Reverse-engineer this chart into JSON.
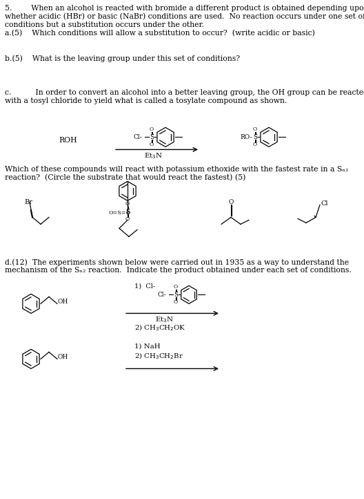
{
  "bg_color": "#ffffff",
  "text_color": "#000000",
  "fig_width": 5.28,
  "fig_height": 7.22,
  "dpi": 100,
  "lines_header": [
    "5.        When an alcohol is reacted with bromide a different product is obtained depending upon",
    "whether acidic (HBr) or basic (NaBr) conditions are used.  No reaction occurs under one set of",
    "conditions but a substitution occurs under the other.",
    "a.(5)    Which conditions will allow a substitution to occur?  (write acidic or basic)"
  ],
  "line_b": "b.(5)    What is the leaving group under this set of conditions?",
  "lines_c": [
    "c.          In order to convert an alcohol into a better leaving group, the OH group can be reacted",
    "with a tosyl chloride to yield what is called a tosylate compound as shown."
  ],
  "lines_which": [
    "Which of these compounds will react with potassium ethoxide with the fastest rate in a Sₙ₂",
    "reaction?  (Circle the substrate that would react the fastest) (5)"
  ],
  "lines_d": [
    "d.(12)  The experiments shown below were carried out in 1935 as a way to understand the",
    "mechanism of the Sₙ₂ reaction.  Indicate the product obtained under each set of conditions."
  ]
}
